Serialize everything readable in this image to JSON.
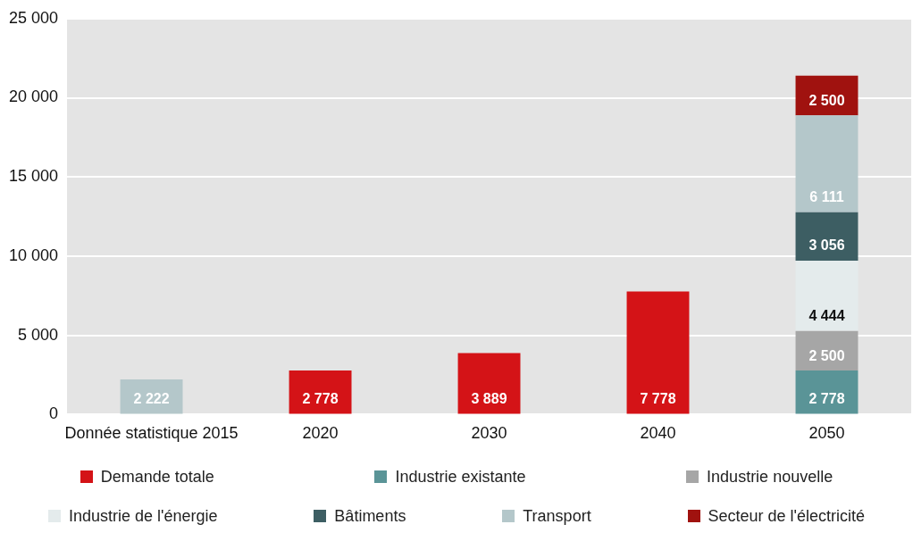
{
  "chart_data": {
    "type": "bar",
    "stacked": true,
    "categories": [
      "Donnée statistique 2015",
      "2020",
      "2030",
      "2040",
      "2050"
    ],
    "series": [
      {
        "name": "Demande totale",
        "color": "#d41317",
        "values": [
          null,
          2778,
          3889,
          7778,
          null
        ],
        "value_labels": [
          null,
          "2 778",
          "3 889",
          "7 778",
          null
        ]
      },
      {
        "name": "Industrie existante",
        "color": "#5a9497",
        "values": [
          null,
          null,
          null,
          null,
          2778
        ],
        "value_labels": [
          null,
          null,
          null,
          null,
          "2 778"
        ]
      },
      {
        "name": "Industrie nouvelle",
        "color": "#a6a6a6",
        "values": [
          null,
          null,
          null,
          null,
          2500
        ],
        "value_labels": [
          null,
          null,
          null,
          null,
          "2 500"
        ]
      },
      {
        "name": "Industrie de l'énergie",
        "color": "#e4ebec",
        "values": [
          null,
          null,
          null,
          null,
          4444
        ],
        "value_labels": [
          null,
          null,
          null,
          null,
          "4 444"
        ]
      },
      {
        "name": "Bâtiments",
        "color": "#3d5e63",
        "values": [
          null,
          null,
          null,
          null,
          3056
        ],
        "value_labels": [
          null,
          null,
          null,
          null,
          "3 056"
        ]
      },
      {
        "name": "Transport",
        "color": "#b4c7ca",
        "values": [
          2222,
          null,
          null,
          null,
          6111
        ],
        "value_labels": [
          "2 222",
          null,
          null,
          null,
          "6 111"
        ]
      },
      {
        "name": "Secteur de l'électricité",
        "color": "#a0120f",
        "values": [
          null,
          null,
          null,
          null,
          2500
        ],
        "value_labels": [
          null,
          null,
          null,
          null,
          "2 500"
        ]
      }
    ],
    "ylim": [
      0,
      25000
    ],
    "yticks": [
      {
        "value": 0,
        "label": "0"
      },
      {
        "value": 5000,
        "label": "5 000"
      },
      {
        "value": 10000,
        "label": "10 000"
      },
      {
        "value": 15000,
        "label": "15 000"
      },
      {
        "value": 20000,
        "label": "20 000"
      },
      {
        "value": 25000,
        "label": "25 000"
      }
    ],
    "grid": "y",
    "legend": "bottom"
  }
}
